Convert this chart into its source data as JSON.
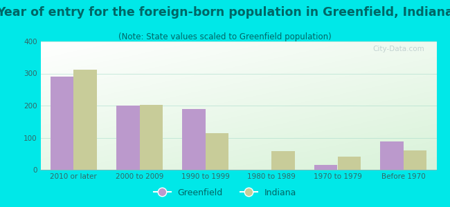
{
  "title": "Year of entry for the foreign-born population in Greenfield, Indiana",
  "subtitle": "(Note: State values scaled to Greenfield population)",
  "categories": [
    "2010 or later",
    "2000 to 2009",
    "1990 to 1999",
    "1980 to 1989",
    "1970 to 1979",
    "Before 1970"
  ],
  "greenfield_values": [
    290,
    200,
    190,
    0,
    15,
    88
  ],
  "indiana_values": [
    312,
    202,
    115,
    58,
    40,
    60
  ],
  "greenfield_color": "#bb99cc",
  "indiana_color": "#c8cc99",
  "background_outer": "#00e8e8",
  "ylim": [
    0,
    400
  ],
  "yticks": [
    0,
    100,
    200,
    300,
    400
  ],
  "bar_width": 0.35,
  "title_fontsize": 12.5,
  "subtitle_fontsize": 8.5,
  "tick_fontsize": 7.5,
  "legend_fontsize": 9,
  "title_color": "#006666",
  "subtitle_color": "#006666",
  "tick_color": "#336666",
  "watermark": "City-Data.com"
}
